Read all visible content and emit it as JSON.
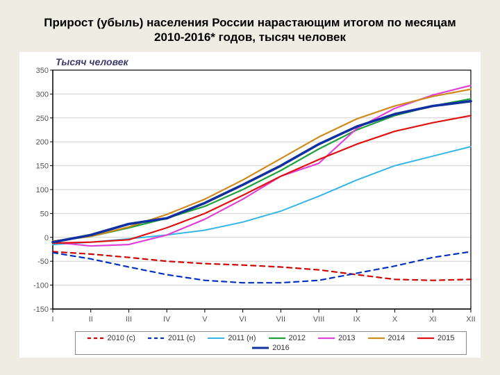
{
  "title_lines": [
    "Прирост (убыль) населения России нарастающим итогом по месяцам",
    "2010-2016* годов, тысяч человек"
  ],
  "y_axis_title": "Тысяч человек",
  "chart": {
    "type": "line",
    "background_color": "#ffffff",
    "plot_border_color": "#000000",
    "grid_color": "#cfcfcf",
    "axis_line_color": "#000000",
    "tick_font_size": 11,
    "tick_color": "#555555",
    "xlabels": [
      "I",
      "II",
      "III",
      "IV",
      "V",
      "VI",
      "VII",
      "VIII",
      "IX",
      "X",
      "XI",
      "XII"
    ],
    "ylim": [
      -150,
      350
    ],
    "ytick_step": 50,
    "line_width_main": 2,
    "line_width_bold": 3.2,
    "series": [
      {
        "id": "2010c",
        "label": "2010 (с)",
        "color": "#cc0000",
        "dash": "7,6",
        "width": 2.2,
        "values": [
          -30,
          -35,
          -42,
          -50,
          -55,
          -58,
          -62,
          -68,
          -78,
          -88,
          -90,
          -88
        ]
      },
      {
        "id": "2011c",
        "label": "2011 (с)",
        "color": "#0030c0",
        "dash": "7,6",
        "width": 2.2,
        "values": [
          -32,
          -45,
          -62,
          -78,
          -90,
          -95,
          -95,
          -90,
          -75,
          -60,
          -42,
          -30
        ]
      },
      {
        "id": "2011n",
        "label": "2011 (н)",
        "color": "#35b4e8",
        "dash": null,
        "width": 2,
        "values": [
          -15,
          -10,
          -3,
          5,
          15,
          32,
          55,
          86,
          120,
          150,
          170,
          190
        ]
      },
      {
        "id": "2012",
        "label": "2012",
        "color": "#1fa038",
        "dash": null,
        "width": 2.2,
        "values": [
          -8,
          2,
          20,
          40,
          65,
          100,
          140,
          185,
          225,
          255,
          275,
          290
        ]
      },
      {
        "id": "2013",
        "label": "2013",
        "color": "#e040d8",
        "dash": null,
        "width": 2.2,
        "values": [
          -10,
          -18,
          -15,
          5,
          38,
          80,
          128,
          155,
          228,
          270,
          298,
          318
        ]
      },
      {
        "id": "2014",
        "label": "2014",
        "color": "#d08a1a",
        "dash": null,
        "width": 2.2,
        "values": [
          -8,
          2,
          22,
          48,
          80,
          120,
          165,
          210,
          248,
          275,
          295,
          310
        ]
      },
      {
        "id": "2015",
        "label": "2015",
        "color": "#e01010",
        "dash": null,
        "width": 2.2,
        "values": [
          -12,
          -10,
          -5,
          20,
          50,
          88,
          128,
          163,
          195,
          222,
          240,
          255
        ]
      },
      {
        "id": "2016",
        "label": "2016",
        "color": "#1030a0",
        "dash": null,
        "width": 3.6,
        "values": [
          -10,
          5,
          28,
          40,
          72,
          110,
          150,
          195,
          232,
          258,
          275,
          285
        ]
      }
    ]
  }
}
